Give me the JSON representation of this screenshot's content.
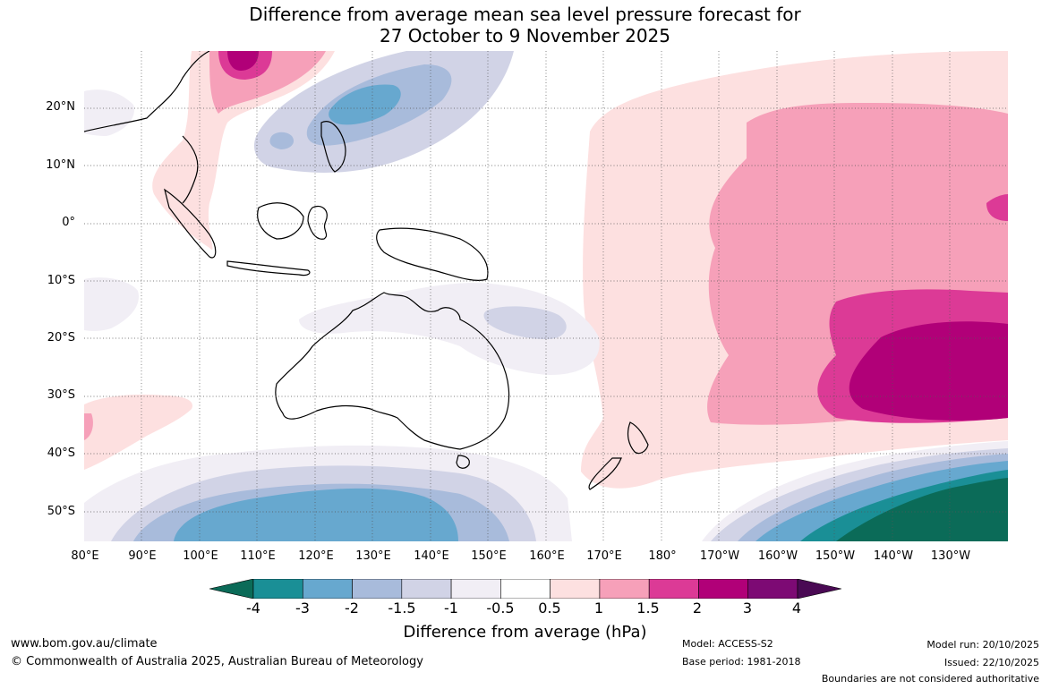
{
  "title": {
    "line1": "Difference from average mean sea level pressure forecast for",
    "line2": "27 October to 9 November 2025"
  },
  "map": {
    "lat_labels": [
      "20°N",
      "10°N",
      "0°",
      "10°S",
      "20°S",
      "30°S",
      "40°S",
      "50°S"
    ],
    "lon_labels": [
      "80°E",
      "90°E",
      "100°E",
      "110°E",
      "120°E",
      "130°E",
      "140°E",
      "150°E",
      "160°E",
      "170°E",
      "180°",
      "170°W",
      "160°W",
      "150°W",
      "140°W",
      "130°W"
    ]
  },
  "legend": {
    "title": "Difference from average (hPa)",
    "ticks": [
      "-4",
      "-3",
      "-2",
      "-1.5",
      "-1",
      "-0.5",
      "0.5",
      "1",
      "1.5",
      "2",
      "3",
      "4"
    ],
    "colors": [
      "#0b6b58",
      "#1a8f96",
      "#67a8cf",
      "#a8bbdb",
      "#d1d3e6",
      "#f1eef5",
      "#ffffff",
      "#fde0e0",
      "#f6a0b9",
      "#dc3a96",
      "#b10078",
      "#7d0a74",
      "#4a0a54"
    ]
  },
  "footer": {
    "url": "www.bom.gov.au/climate",
    "copyright": "© Commonwealth of Australia 2025, Australian Bureau of Meteorology",
    "model": "Model: ACCESS-S2",
    "base_period": "Base period: 1981-2018",
    "model_run": "Model run: 20/10/2025",
    "issued": "Issued: 22/10/2025",
    "disclaimer": "Boundaries are not considered authoritative"
  }
}
